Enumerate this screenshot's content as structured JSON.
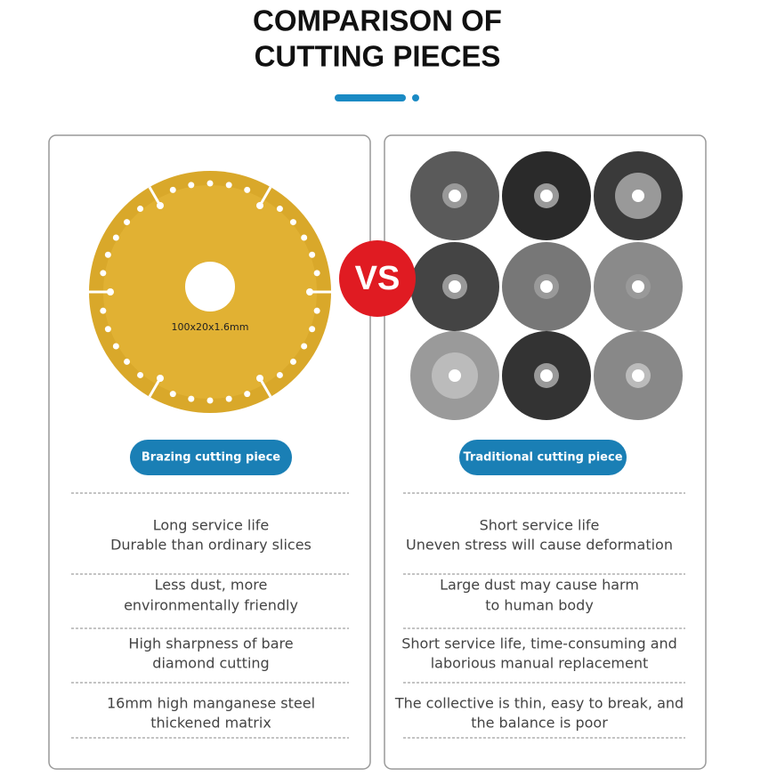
{
  "header": {
    "title": [
      "COMPARISON OF",
      "CUTTING PIECES"
    ]
  },
  "vs": "VS",
  "left": {
    "blade_marking": "100x20x1.6mm",
    "label": "Brazing cutting piece",
    "points": [
      [
        "Long service life",
        "Durable than ordinary slices"
      ],
      [
        "Less dust, more",
        "environmentally friendly"
      ],
      [
        "High sharpness of bare",
        "diamond cutting"
      ],
      [
        "16mm high manganese steel",
        "thickened matrix"
      ]
    ]
  },
  "right": {
    "label": "Traditional cutting piece",
    "points": [
      [
        "Short service life",
        "Uneven stress will cause deformation"
      ],
      [
        "Large dust may cause harm",
        "to human body"
      ],
      [
        "Short service life, time-consuming and",
        "laborious manual replacement"
      ],
      [
        "The collective is thin, easy to break, and",
        "the balance is poor"
      ]
    ]
  }
}
